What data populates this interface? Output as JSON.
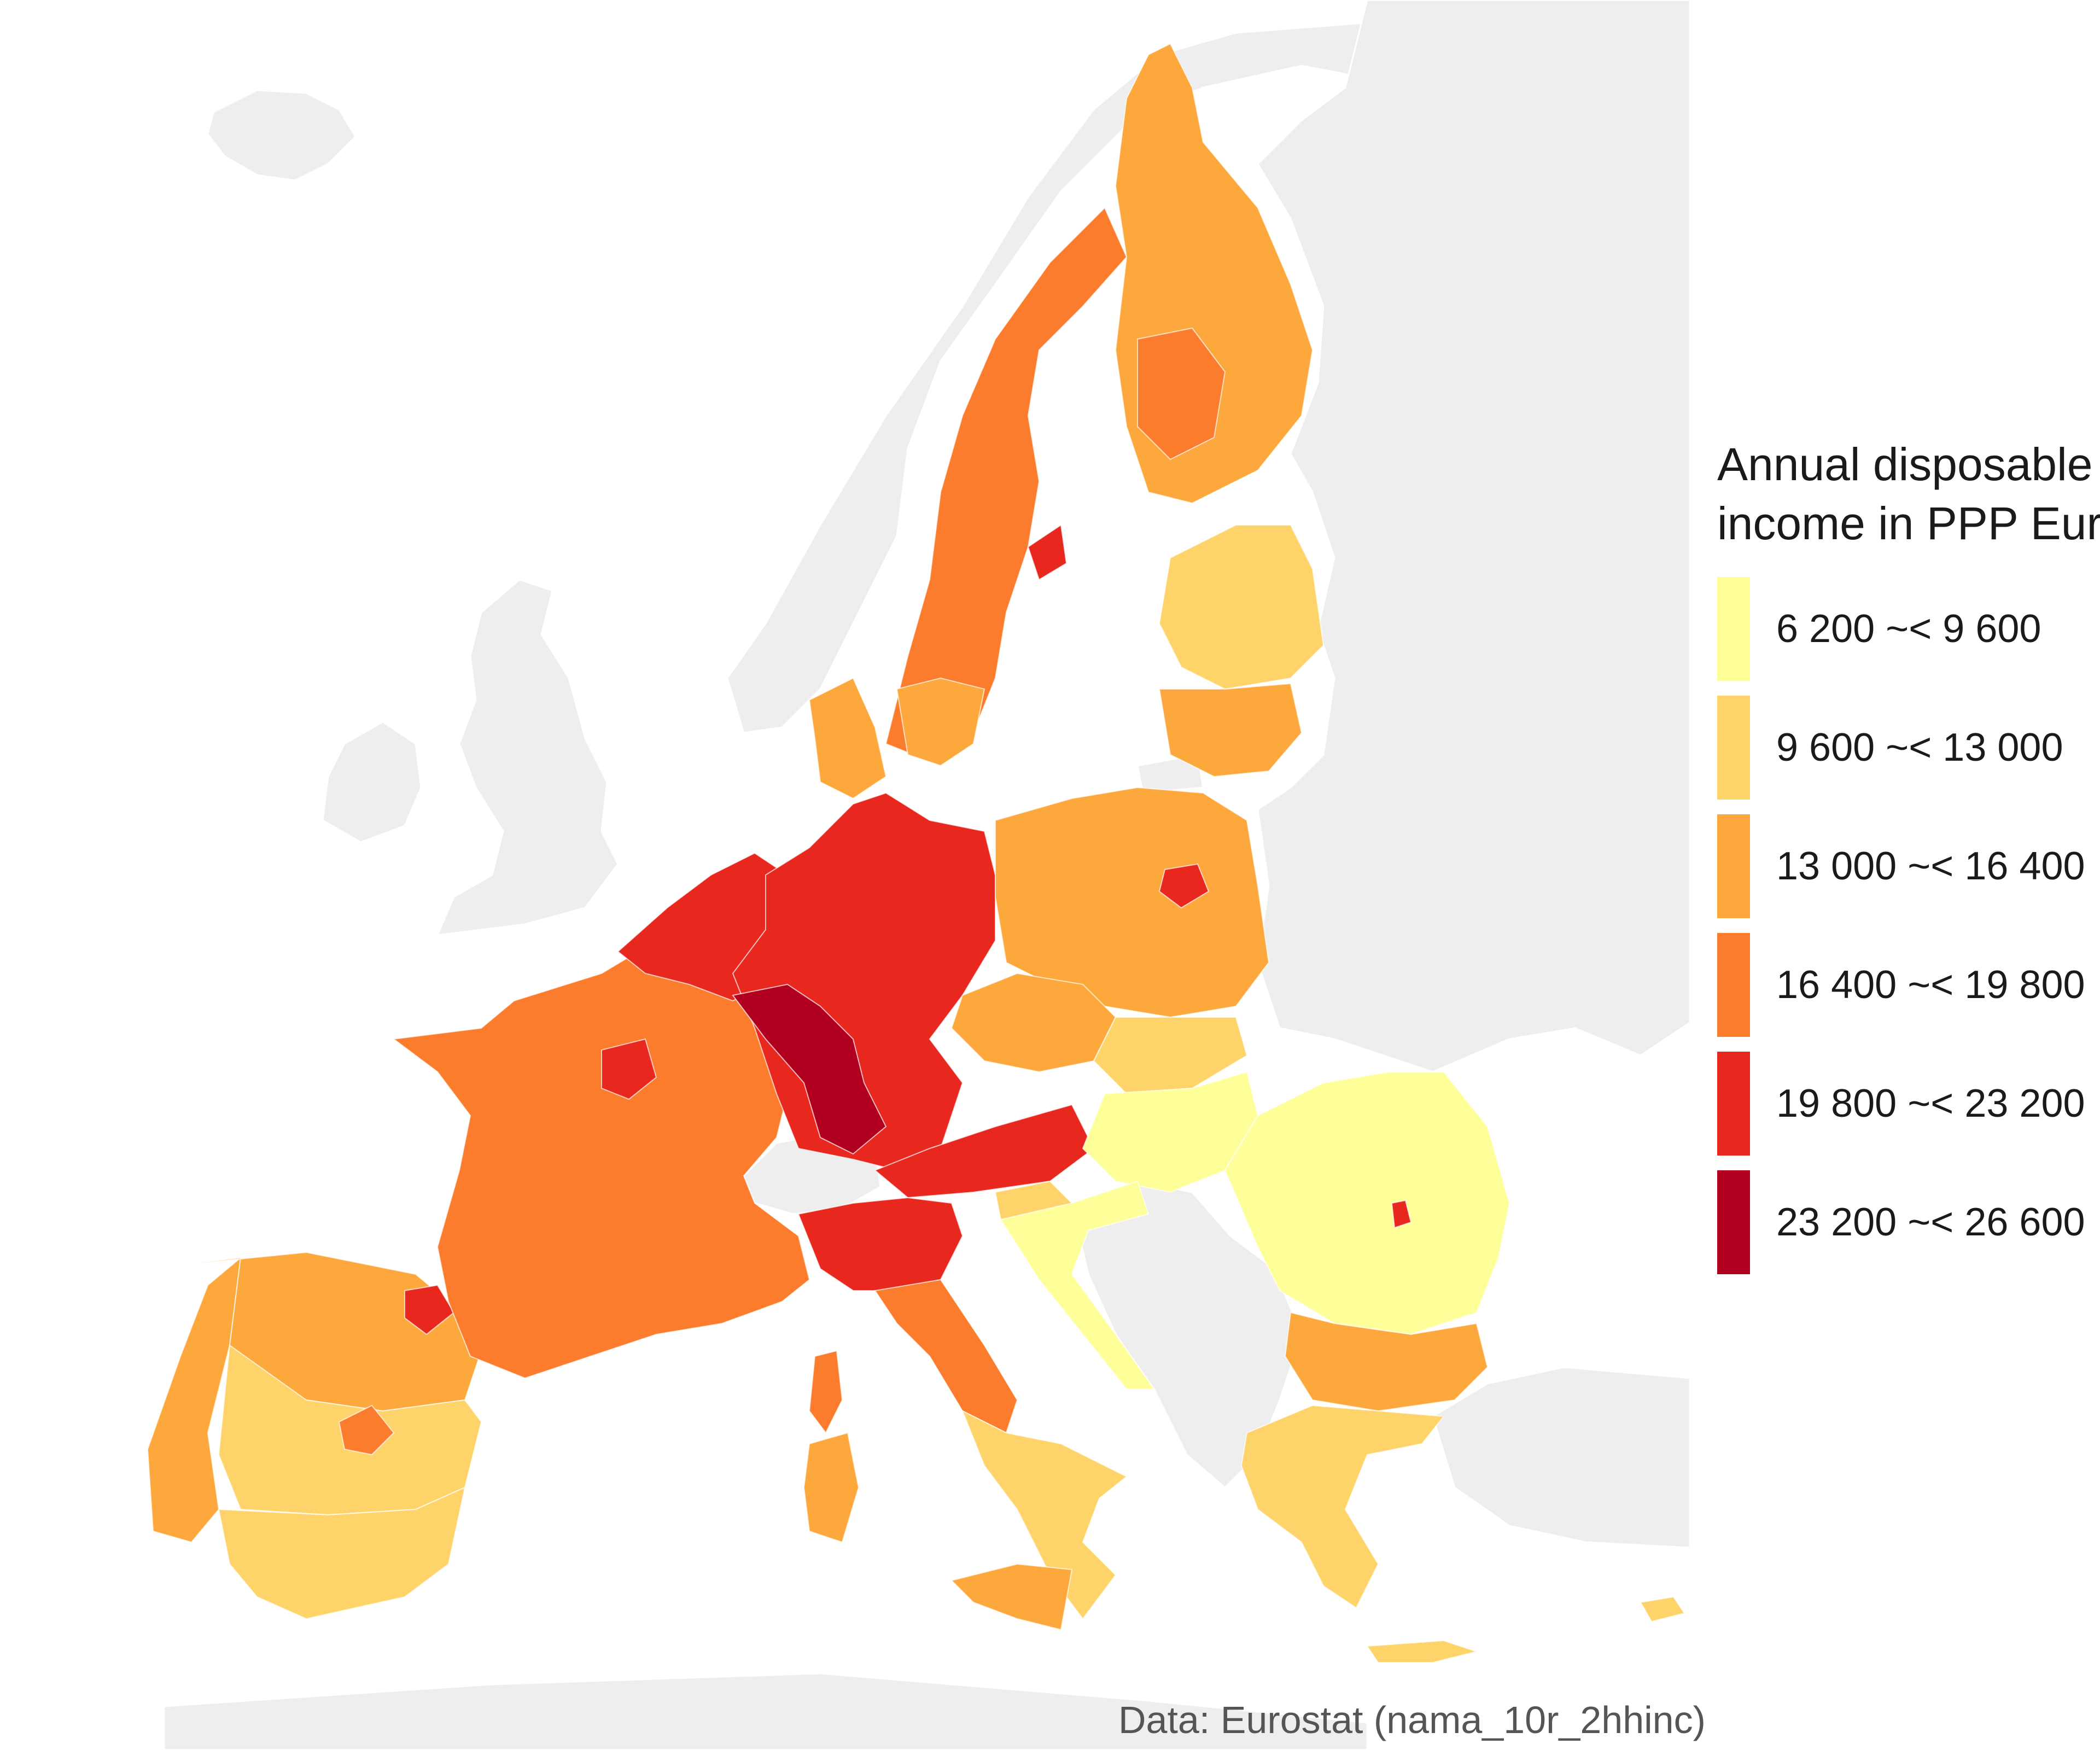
{
  "legend": {
    "title_line1": "Annual disposable",
    "title_line2": "income in PPP Euro",
    "classes": [
      {
        "label": "6 200 ~< 9 600",
        "color": "#ffff99"
      },
      {
        "label": "9 600 ~< 13 000",
        "color": "#fed46a"
      },
      {
        "label": "13 000 ~< 16 400",
        "color": "#fda83d"
      },
      {
        "label": "16 400 ~< 19 800",
        "color": "#fa7c2c"
      },
      {
        "label": "19 800 ~< 23 200",
        "color": "#e8271e"
      },
      {
        "label": "23 200 ~< 26 600",
        "color": "#b1001f"
      }
    ]
  },
  "source": "Data: Eurostat (nama_10r_2hhinc)",
  "colors": {
    "background": "#ffffff",
    "non_eu_land": "#eeeeee",
    "borders": "#ffffff"
  },
  "map_classes": {
    "portugal": 2,
    "spain_north": 2,
    "spain_central": 1,
    "spain_south": 1,
    "basque": 4,
    "madrid": 3,
    "france": 3,
    "ile_de_france": 4,
    "belgium_nl": 4,
    "germany": 4,
    "germany_south": 5,
    "austria": 4,
    "switzerland": -1,
    "italy_north": 4,
    "italy_central": 3,
    "italy_south": 1,
    "sicily": 2,
    "sardinia": 2,
    "corsica": 3,
    "denmark": 2,
    "sweden": 3,
    "sweden_south": 2,
    "stockholm": 4,
    "finland": 2,
    "finland_central": 3,
    "baltics": 1,
    "lithuania": 2,
    "poland": 2,
    "warsaw": 4,
    "czechia": 2,
    "slovakia": 1,
    "hungary": 0,
    "romania": 0,
    "bucharest": 4,
    "bulgaria": 2,
    "greece": 1,
    "croatia": 0,
    "slovenia": 1,
    "cyprus": 1
  }
}
